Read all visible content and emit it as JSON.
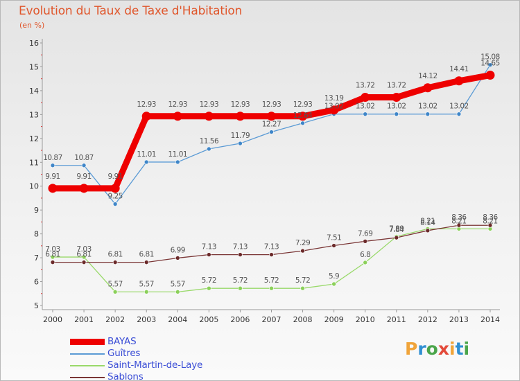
{
  "title": "Evolution du Taux de Taxe d'Habitation",
  "subtitle": "(en %)",
  "logo": {
    "text": "Proxiti",
    "letters": [
      {
        "ch": "P",
        "color": "#f0a43a"
      },
      {
        "ch": "r",
        "color": "#2f8fd2"
      },
      {
        "ch": "o",
        "color": "#4aa54a"
      },
      {
        "ch": "x",
        "color": "#e34a3a"
      },
      {
        "ch": "i",
        "color": "#f0a43a"
      },
      {
        "ch": "t",
        "color": "#2f8fd2"
      },
      {
        "ch": "i",
        "color": "#4aa54a"
      }
    ]
  },
  "chart_data": {
    "type": "line",
    "title": "Evolution du Taux de Taxe d'Habitation",
    "ylabel": "(en %)",
    "xlabel": "",
    "x": [
      "2000",
      "2001",
      "2002",
      "2003",
      "2004",
      "2005",
      "2006",
      "2007",
      "2008",
      "2009",
      "2010",
      "2011",
      "2012",
      "2013",
      "2014"
    ],
    "ylim": [
      5,
      16
    ],
    "yticks": [
      "5",
      "6",
      "7",
      "8",
      "9",
      "10",
      "11",
      "12",
      "13",
      "14",
      "15",
      "16"
    ],
    "grid": false,
    "legend_position": "bottom-left",
    "series": [
      {
        "name": "BAYAS",
        "color": "#ee0000",
        "style": "thick",
        "values": [
          9.91,
          9.91,
          9.91,
          12.93,
          12.93,
          12.93,
          12.93,
          12.93,
          12.93,
          13.19,
          13.72,
          13.72,
          14.12,
          14.41,
          14.65
        ],
        "labels": [
          "9.91",
          "9.91",
          "9.91",
          "12.93",
          "12.93",
          "12.93",
          "12.93",
          "12.93",
          "12.93",
          "13.19",
          "13.72",
          "13.72",
          "14.12",
          "14.41",
          "14.65"
        ]
      },
      {
        "name": "Guîtres",
        "color": "#5b9bd5",
        "marker": "#3f86c8",
        "style": "thin",
        "values": [
          10.87,
          10.87,
          9.25,
          11.01,
          11.01,
          11.56,
          11.79,
          12.27,
          12.64,
          13.02,
          13.02,
          13.02,
          13.02,
          13.02,
          15.08
        ],
        "labels": [
          "10.87",
          "10.87",
          "9.25",
          "11.01",
          "11.01",
          "11.56",
          "11.79",
          "12.27",
          "12.64",
          "13.02",
          "13.02",
          "13.02",
          "13.02",
          "13.02",
          "15.08"
        ]
      },
      {
        "name": "Saint-Martin-de-Laye",
        "color": "#99d96a",
        "marker": "#8bd05a",
        "style": "thin",
        "values": [
          7.03,
          7.03,
          5.57,
          5.57,
          5.57,
          5.72,
          5.72,
          5.72,
          5.72,
          5.9,
          6.8,
          7.89,
          8.21,
          8.21,
          8.21
        ],
        "labels": [
          "7.03",
          "7.03",
          "5.57",
          "5.57",
          "5.57",
          "5.72",
          "5.72",
          "5.72",
          "5.72",
          "5.9",
          "6.8",
          "7.89",
          "8.21",
          "8.21",
          "8.21"
        ]
      },
      {
        "name": "Sablons",
        "color": "#7a3535",
        "marker": "#6b2a2a",
        "style": "thin",
        "values": [
          6.81,
          6.81,
          6.81,
          6.81,
          6.99,
          7.13,
          7.13,
          7.13,
          7.29,
          7.51,
          7.69,
          7.84,
          8.14,
          8.36,
          8.36
        ],
        "labels": [
          "6.81",
          "6.81",
          "6.81",
          "6.81",
          "6.99",
          "7.13",
          "7.13",
          "7.13",
          "7.29",
          "7.51",
          "7.69",
          "7.84",
          "8.14",
          "8.36",
          "8.36"
        ]
      }
    ]
  }
}
